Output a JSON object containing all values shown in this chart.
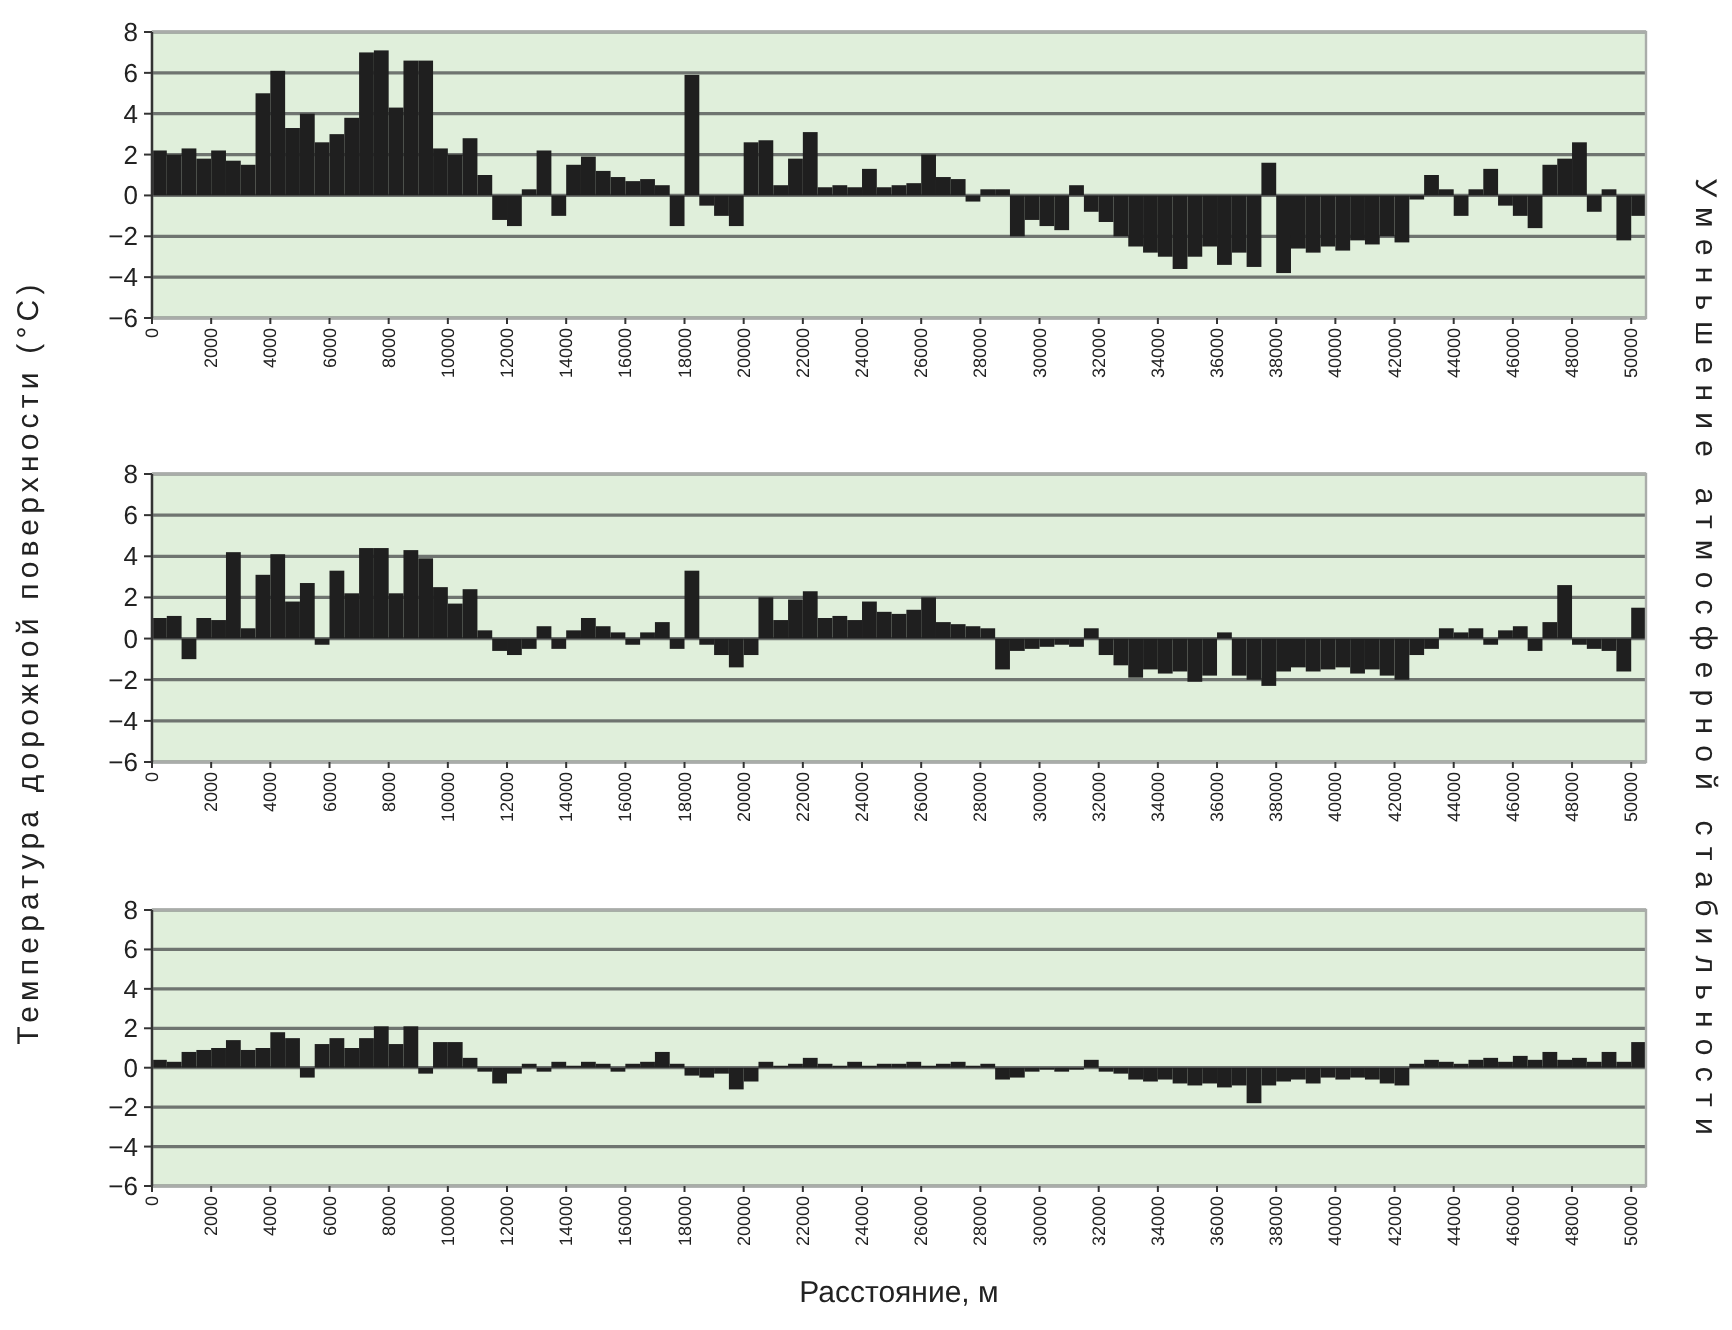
{
  "chart_data": [
    {
      "type": "bar",
      "x": [
        250,
        750,
        1250,
        1750,
        2250,
        2750,
        3250,
        3750,
        4250,
        4750,
        5250,
        5750,
        6250,
        6750,
        7250,
        7750,
        8250,
        8750,
        9250,
        9750,
        10250,
        10750,
        11250,
        11750,
        12250,
        12750,
        13250,
        13750,
        14250,
        14750,
        15250,
        15750,
        16250,
        16750,
        17250,
        17750,
        18250,
        18750,
        19250,
        19750,
        20250,
        20750,
        21250,
        21750,
        22250,
        22750,
        23250,
        23750,
        24250,
        24750,
        25250,
        25750,
        26250,
        26750,
        27250,
        27750,
        28250,
        28750,
        29250,
        29750,
        30250,
        30750,
        31250,
        31750,
        32250,
        32750,
        33250,
        33750,
        34250,
        34750,
        35250,
        35750,
        36250,
        36750,
        37250,
        37750,
        38250,
        38750,
        39250,
        39750,
        40250,
        40750,
        41250,
        41750,
        42250,
        42750,
        43250,
        43750,
        44250,
        44750,
        45250,
        45750,
        46250,
        46750,
        47250,
        47750,
        48250,
        48750,
        49250,
        49750,
        50250
      ],
      "values": [
        2.2,
        2.0,
        2.3,
        1.8,
        2.2,
        1.7,
        1.5,
        5.0,
        6.1,
        3.3,
        4.0,
        2.6,
        3.0,
        3.8,
        7.0,
        7.1,
        4.3,
        6.6,
        6.6,
        2.3,
        2.0,
        2.8,
        1.0,
        -1.2,
        -1.5,
        0.3,
        2.2,
        -1.0,
        1.5,
        1.9,
        1.2,
        0.9,
        0.7,
        0.8,
        0.5,
        -1.5,
        5.9,
        -0.5,
        -1.0,
        -1.5,
        2.6,
        2.7,
        0.5,
        1.8,
        3.1,
        0.4,
        0.5,
        0.4,
        1.3,
        0.4,
        0.5,
        0.6,
        2.0,
        0.9,
        0.8,
        -0.3,
        0.3,
        0.3,
        -2.0,
        -1.2,
        -1.5,
        -1.7,
        0.5,
        -0.8,
        -1.3,
        -2.0,
        -2.5,
        -2.8,
        -3.0,
        -3.6,
        -3.0,
        -2.5,
        -3.4,
        -2.8,
        -3.5,
        1.6,
        -3.8,
        -2.6,
        -2.8,
        -2.5,
        -2.7,
        -2.2,
        -2.4,
        -2.0,
        -2.3,
        -0.2,
        1.0,
        0.3,
        -1.0,
        0.3,
        1.3,
        -0.5,
        -1.0,
        -1.6,
        1.5,
        1.8,
        2.6,
        -0.8,
        0.3,
        -2.2,
        -1.0
      ],
      "color": "#1f1f1f",
      "xlim": [
        0,
        50500
      ],
      "ylim": [
        -6,
        8
      ],
      "xticks": [
        0,
        2000,
        4000,
        6000,
        8000,
        10000,
        12000,
        14000,
        16000,
        18000,
        20000,
        22000,
        24000,
        26000,
        28000,
        30000,
        32000,
        34000,
        36000,
        38000,
        40000,
        42000,
        44000,
        46000,
        48000,
        50000
      ],
      "yticks": [
        -6,
        -4,
        -2,
        0,
        2,
        4,
        6,
        8
      ],
      "grid": "y"
    },
    {
      "type": "bar",
      "ylabel": "Температура дорожной поверхности (°C)",
      "annotations": [
        "Уменьшение атмосферной стабильности"
      ],
      "x": [
        250,
        750,
        1250,
        1750,
        2250,
        2750,
        3250,
        3750,
        4250,
        4750,
        5250,
        5750,
        6250,
        6750,
        7250,
        7750,
        8250,
        8750,
        9250,
        9750,
        10250,
        10750,
        11250,
        11750,
        12250,
        12750,
        13250,
        13750,
        14250,
        14750,
        15250,
        15750,
        16250,
        16750,
        17250,
        17750,
        18250,
        18750,
        19250,
        19750,
        20250,
        20750,
        21250,
        21750,
        22250,
        22750,
        23250,
        23750,
        24250,
        24750,
        25250,
        25750,
        26250,
        26750,
        27250,
        27750,
        28250,
        28750,
        29250,
        29750,
        30250,
        30750,
        31250,
        31750,
        32250,
        32750,
        33250,
        33750,
        34250,
        34750,
        35250,
        35750,
        36250,
        36750,
        37250,
        37750,
        38250,
        38750,
        39250,
        39750,
        40250,
        40750,
        41250,
        41750,
        42250,
        42750,
        43250,
        43750,
        44250,
        44750,
        45250,
        45750,
        46250,
        46750,
        47250,
        47750,
        48250,
        48750,
        49250,
        49750,
        50250
      ],
      "values": [
        1.0,
        1.1,
        -1.0,
        1.0,
        0.9,
        4.2,
        0.5,
        3.1,
        4.1,
        1.8,
        2.7,
        -0.3,
        3.3,
        2.2,
        4.4,
        4.4,
        2.2,
        4.3,
        3.9,
        2.5,
        1.7,
        2.4,
        0.4,
        -0.6,
        -0.8,
        -0.5,
        0.6,
        -0.5,
        0.4,
        1.0,
        0.6,
        0.3,
        -0.3,
        0.3,
        0.8,
        -0.5,
        3.3,
        -0.3,
        -0.8,
        -1.4,
        -0.8,
        2.0,
        0.9,
        1.9,
        2.3,
        1.0,
        1.1,
        0.9,
        1.8,
        1.3,
        1.2,
        1.4,
        2.0,
        0.8,
        0.7,
        0.6,
        0.5,
        -1.5,
        -0.6,
        -0.5,
        -0.4,
        -0.3,
        -0.4,
        0.5,
        -0.8,
        -1.3,
        -1.9,
        -1.5,
        -1.7,
        -1.6,
        -2.1,
        -1.8,
        0.3,
        -1.8,
        -2.0,
        -2.3,
        -1.6,
        -1.4,
        -1.6,
        -1.5,
        -1.4,
        -1.7,
        -1.5,
        -1.8,
        -2.0,
        -0.8,
        -0.5,
        0.5,
        0.3,
        0.5,
        -0.3,
        0.4,
        0.6,
        -0.6,
        0.8,
        2.6,
        -0.3,
        -0.5,
        -0.6,
        -1.6,
        1.5
      ],
      "color": "#1f1f1f",
      "xlim": [
        0,
        50500
      ],
      "ylim": [
        -6,
        8
      ],
      "xticks": [
        0,
        2000,
        4000,
        6000,
        8000,
        10000,
        12000,
        14000,
        16000,
        18000,
        20000,
        22000,
        24000,
        26000,
        28000,
        30000,
        32000,
        34000,
        36000,
        38000,
        40000,
        42000,
        44000,
        46000,
        48000,
        50000
      ],
      "yticks": [
        -6,
        -4,
        -2,
        0,
        2,
        4,
        6,
        8
      ],
      "grid": "y"
    },
    {
      "type": "bar",
      "xlabel": "Расстояние, м",
      "x": [
        250,
        750,
        1250,
        1750,
        2250,
        2750,
        3250,
        3750,
        4250,
        4750,
        5250,
        5750,
        6250,
        6750,
        7250,
        7750,
        8250,
        8750,
        9250,
        9750,
        10250,
        10750,
        11250,
        11750,
        12250,
        12750,
        13250,
        13750,
        14250,
        14750,
        15250,
        15750,
        16250,
        16750,
        17250,
        17750,
        18250,
        18750,
        19250,
        19750,
        20250,
        20750,
        21250,
        21750,
        22250,
        22750,
        23250,
        23750,
        24250,
        24750,
        25250,
        25750,
        26250,
        26750,
        27250,
        27750,
        28250,
        28750,
        29250,
        29750,
        30250,
        30750,
        31250,
        31750,
        32250,
        32750,
        33250,
        33750,
        34250,
        34750,
        35250,
        35750,
        36250,
        36750,
        37250,
        37750,
        38250,
        38750,
        39250,
        39750,
        40250,
        40750,
        41250,
        41750,
        42250,
        42750,
        43250,
        43750,
        44250,
        44750,
        45250,
        45750,
        46250,
        46750,
        47250,
        47750,
        48250,
        48750,
        49250,
        49750,
        50250
      ],
      "values": [
        0.4,
        0.3,
        0.8,
        0.9,
        1.0,
        1.4,
        0.9,
        1.0,
        1.8,
        1.5,
        -0.5,
        1.2,
        1.5,
        1.0,
        1.5,
        2.1,
        1.2,
        2.1,
        -0.3,
        1.3,
        1.3,
        0.5,
        -0.2,
        -0.8,
        -0.3,
        0.2,
        -0.2,
        0.3,
        0.1,
        0.3,
        0.2,
        -0.2,
        0.2,
        0.3,
        0.8,
        0.2,
        -0.4,
        -0.5,
        -0.3,
        -1.1,
        -0.7,
        0.3,
        0.1,
        0.2,
        0.5,
        0.2,
        0.1,
        0.3,
        0.1,
        0.2,
        0.2,
        0.3,
        0.1,
        0.2,
        0.3,
        0.1,
        0.2,
        -0.6,
        -0.5,
        -0.2,
        -0.1,
        -0.2,
        -0.1,
        0.4,
        -0.2,
        -0.3,
        -0.6,
        -0.7,
        -0.6,
        -0.8,
        -0.9,
        -0.8,
        -1.0,
        -0.9,
        -1.8,
        -0.9,
        -0.7,
        -0.6,
        -0.8,
        -0.5,
        -0.6,
        -0.5,
        -0.6,
        -0.8,
        -0.9,
        0.2,
        0.4,
        0.3,
        0.2,
        0.4,
        0.5,
        0.3,
        0.6,
        0.4,
        0.8,
        0.4,
        0.5,
        0.3,
        0.8,
        0.3,
        1.3
      ],
      "color": "#1f1f1f",
      "xlim": [
        0,
        50500
      ],
      "ylim": [
        -6,
        8
      ],
      "xticks": [
        0,
        2000,
        4000,
        6000,
        8000,
        10000,
        12000,
        14000,
        16000,
        18000,
        20000,
        22000,
        24000,
        26000,
        28000,
        30000,
        32000,
        34000,
        36000,
        38000,
        40000,
        42000,
        44000,
        46000,
        48000,
        50000
      ],
      "yticks": [
        -6,
        -4,
        -2,
        0,
        2,
        4,
        6,
        8
      ],
      "grid": "y"
    }
  ]
}
